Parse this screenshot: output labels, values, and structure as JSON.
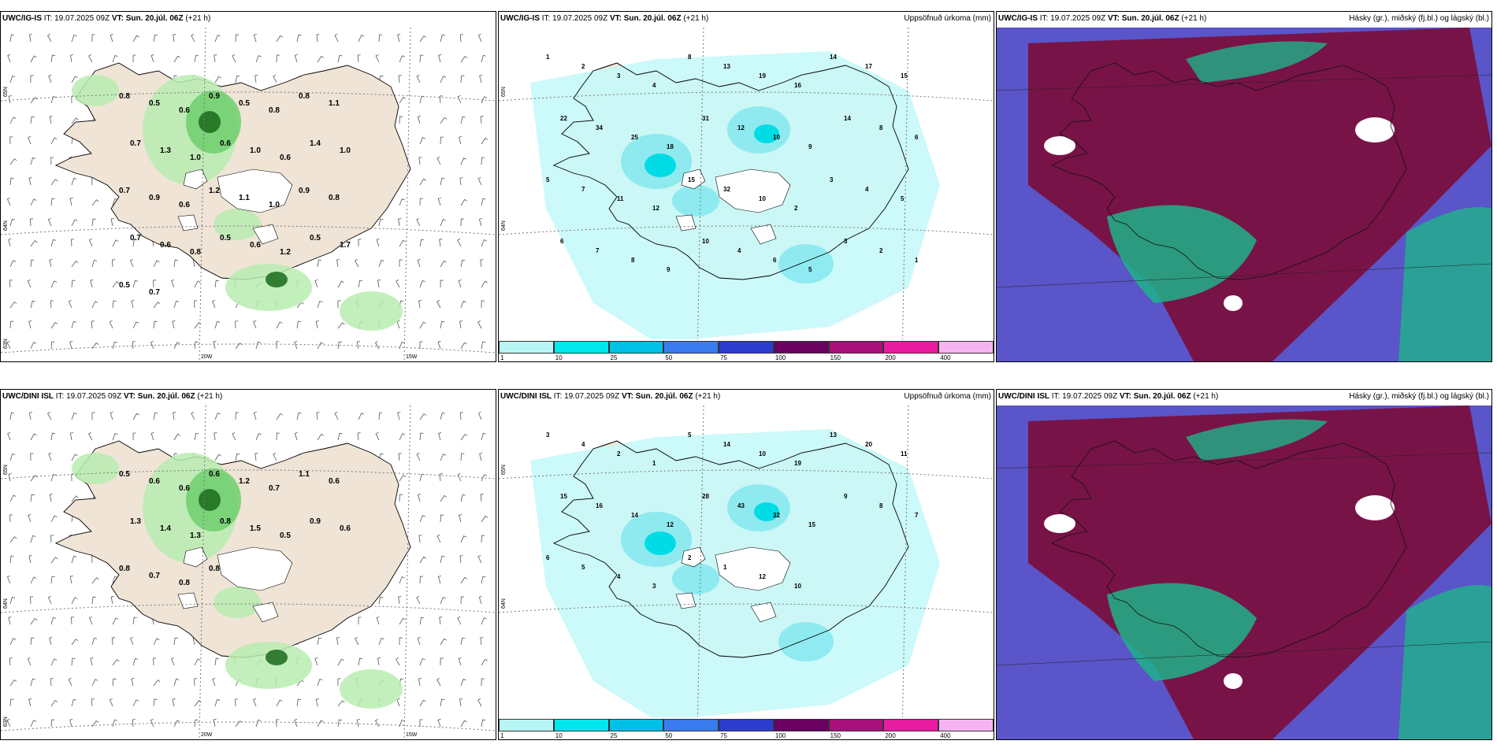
{
  "rows": [
    {
      "wind": {
        "model": "UWC/IG-IS",
        "it_label": "IT:",
        "it_value": "19.07.2025 09Z",
        "vt_label": "VT:",
        "vt_value": "Sun. 20.júl. 06Z",
        "lead": "(+21 h)",
        "lat_labels": [
          "65N",
          "64N",
          "63N"
        ],
        "lon_labels": [
          "20W",
          "15W"
        ],
        "values": [
          "0.8",
          "0.5",
          "0.6",
          "0.9",
          "0.5",
          "0.8",
          "0.8",
          "1.1",
          "0.7",
          "1.3",
          "1.0",
          "0.6",
          "1.0",
          "0.6",
          "1.4",
          "1.0",
          "0.7",
          "0.9",
          "0.6",
          "1.2",
          "1.1",
          "1.0",
          "0.9",
          "0.8",
          "0.7",
          "0.6",
          "0.8",
          "0.5",
          "0.6",
          "1.2",
          "0.5",
          "1.7",
          "0.5",
          "0.7"
        ]
      },
      "precip": {
        "model": "UWC/IG-IS",
        "it_label": "IT:",
        "it_value": "19.07.2025 09Z",
        "vt_label": "VT:",
        "vt_value": "Sun. 20.júl. 06Z",
        "lead": "(+21 h)",
        "right_title": "Uppsöfnuð úrkoma (mm)",
        "lat_labels": [
          "65N",
          "64N"
        ],
        "values": [
          "1",
          "2",
          "3",
          "4",
          "8",
          "13",
          "19",
          "16",
          "14",
          "17",
          "15",
          "22",
          "34",
          "25",
          "18",
          "31",
          "12",
          "10",
          "9",
          "14",
          "8",
          "6",
          "5",
          "7",
          "11",
          "12",
          "15",
          "32",
          "10",
          "2",
          "3",
          "4",
          "5",
          "6",
          "7",
          "8",
          "9",
          "10",
          "4",
          "6",
          "5",
          "3",
          "2",
          "1"
        ]
      },
      "cloud": {
        "model": "UWC/IG-IS",
        "it_label": "IT:",
        "it_value": "19.07.2025 09Z",
        "vt_label": "VT:",
        "vt_value": "Sun. 20.júl. 06Z",
        "lead": "(+21 h)",
        "right_title": "Hásky (gr.), miðský (fj.bl.) og lágský (bl.)"
      }
    },
    {
      "wind": {
        "model": "UWC/DINI ISL",
        "it_label": "IT:",
        "it_value": "19.07.2025 09Z",
        "vt_label": "VT:",
        "vt_value": "Sun. 20.júl. 06Z",
        "lead": "(+21 h)",
        "lat_labels": [
          "65N",
          "64N",
          "63N"
        ],
        "lon_labels": [
          "20W",
          "15W"
        ],
        "values": [
          "0.5",
          "0.6",
          "0.6",
          "0.6",
          "1.2",
          "0.7",
          "1.1",
          "0.6",
          "1.3",
          "1.4",
          "1.3",
          "0.8",
          "1.5",
          "0.5",
          "0.9",
          "0.6",
          "0.8",
          "0.7",
          "0.8",
          "0.8"
        ]
      },
      "precip": {
        "model": "UWC/DINI ISL",
        "it_label": "IT:",
        "it_value": "19.07.2025 09Z",
        "vt_label": "VT:",
        "vt_value": "Sun. 20.júl. 06Z",
        "lead": "(+21 h)",
        "right_title": "Uppsöfnuð úrkoma (mm)",
        "lat_labels": [
          "65N",
          "64N"
        ],
        "values": [
          "3",
          "4",
          "2",
          "1",
          "5",
          "14",
          "10",
          "19",
          "13",
          "20",
          "11",
          "15",
          "16",
          "14",
          "12",
          "28",
          "43",
          "32",
          "15",
          "9",
          "8",
          "7",
          "6",
          "5",
          "4",
          "3",
          "2",
          "1",
          "12",
          "10"
        ]
      },
      "cloud": {
        "model": "UWC/DINI ISL",
        "it_label": "IT:",
        "it_value": "19.07.2025 09Z",
        "vt_label": "VT:",
        "vt_value": "Sun. 20.júl. 06Z",
        "lead": "(+21 h)",
        "right_title": "Hásky (gr.), miðský (fj.bl.) og lágský (bl.)"
      }
    }
  ],
  "colorbar": {
    "labels": [
      "1",
      "10",
      "25",
      "50",
      "75",
      "100",
      "150",
      "200",
      "400"
    ],
    "colors": [
      "#b8f5f5",
      "#00e8ec",
      "#00c0e8",
      "#3a7cf0",
      "#2c3ccc",
      "#6a0060",
      "#a8107c",
      "#e81ca0",
      "#f5b4f0"
    ]
  },
  "palette": {
    "land": "#efe4d6",
    "wind_green_light": "#b9ecb0",
    "wind_green_mid": "#6fcf6f",
    "wind_green_dark": "#1a6a1a",
    "precip_light": "#c8f8f8",
    "precip_mid": "#88e8ef",
    "precip_strong": "#00dce6",
    "cloud_high": "#7a1040",
    "cloud_mid": "#1fb38a",
    "cloud_low": "#5a55c8",
    "glacier": "#ffffff"
  }
}
